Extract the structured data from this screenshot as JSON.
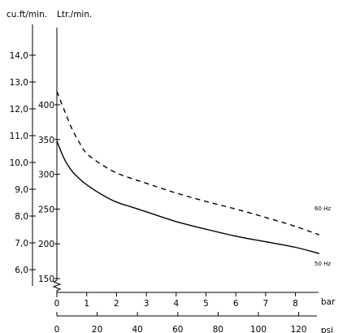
{
  "chart_data": {
    "type": "line",
    "units": {
      "cfm_axis": "cu.ft/min.",
      "lpm_axis": "Ltr./min.",
      "bar_axis": "bar",
      "psi_axis": "psi"
    },
    "axes": {
      "lpm_ticks": [
        150,
        200,
        250,
        300,
        350,
        400
      ],
      "cfm_ticks": [
        "6,0",
        "7,0",
        "8,0",
        "9,0",
        "10,0",
        "11,0",
        "12,0",
        "13,0",
        "14,0"
      ],
      "cfm_values": [
        6,
        7,
        8,
        9,
        10,
        11,
        12,
        13,
        14
      ],
      "bar_ticks": [
        0,
        1,
        2,
        3,
        4,
        5,
        6,
        7,
        8
      ],
      "psi_ticks": [
        0,
        20,
        40,
        60,
        80,
        100,
        120
      ],
      "bar_range": [
        0,
        8.9
      ],
      "lpm_range": [
        143,
        445
      ]
    },
    "series": [
      {
        "name": "60 Hz",
        "style": "dashed",
        "x": [
          0,
          0.25,
          0.5,
          0.75,
          1,
          1.5,
          2,
          2.5,
          3,
          4,
          5,
          6,
          7,
          8,
          8.8
        ],
        "y": [
          419,
          392,
          366,
          346,
          330,
          314,
          302,
          294,
          287,
          273,
          261,
          250,
          238,
          225,
          213
        ]
      },
      {
        "name": "50 Hz",
        "style": "solid",
        "x": [
          0,
          0.25,
          0.5,
          0.75,
          1,
          1.5,
          2,
          2.5,
          3,
          4,
          5,
          6,
          7,
          8,
          8.8
        ],
        "y": [
          348,
          322,
          305,
          294,
          285,
          271,
          260,
          253,
          246,
          232,
          221,
          211,
          203,
          195,
          186
        ]
      }
    ]
  }
}
